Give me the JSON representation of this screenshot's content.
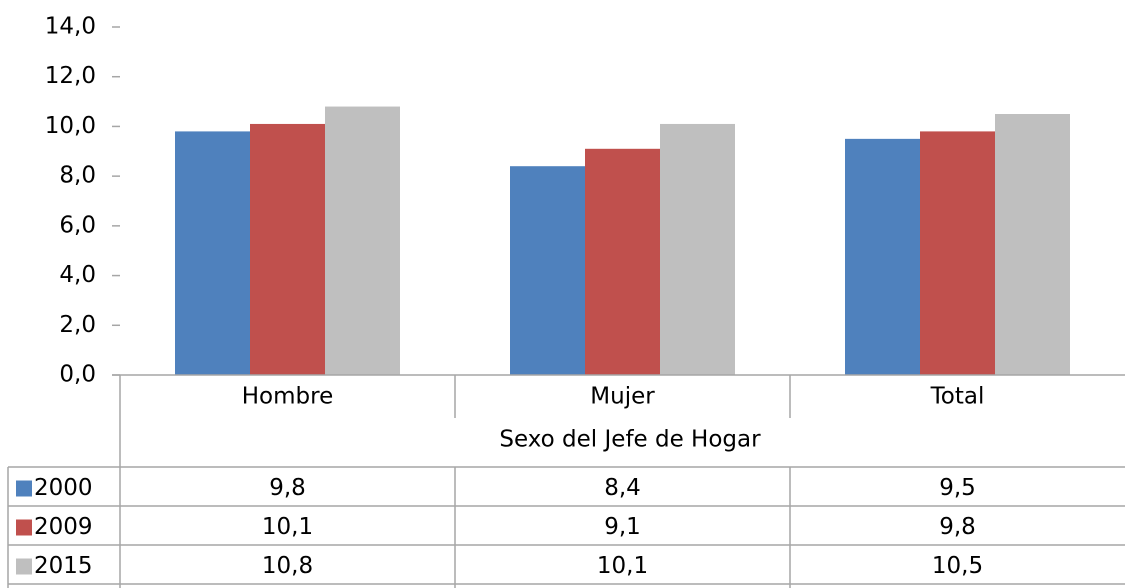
{
  "chart_data": {
    "type": "bar",
    "x_label": "Sexo del Jefe de Hogar",
    "categories": [
      "Hombre",
      "Mujer",
      "Total"
    ],
    "series": [
      {
        "name": "2000",
        "color": "#4f81bd",
        "values": [
          9.8,
          8.4,
          9.5
        ],
        "value_labels": [
          "9,8",
          "8,4",
          "9,5"
        ]
      },
      {
        "name": "2009",
        "color": "#c0504d",
        "values": [
          10.1,
          9.1,
          9.8
        ],
        "value_labels": [
          "10,1",
          "9,1",
          "9,8"
        ]
      },
      {
        "name": "2015",
        "color": "#bfbfbf",
        "values": [
          10.8,
          10.1,
          10.5
        ],
        "value_labels": [
          "10,8",
          "10,1",
          "10,5"
        ]
      }
    ],
    "ylim": [
      0,
      14
    ],
    "yticks": [
      {
        "value": 0,
        "label": "0,0"
      },
      {
        "value": 2,
        "label": "2,0"
      },
      {
        "value": 4,
        "label": "4,0"
      },
      {
        "value": 6,
        "label": "6,0"
      },
      {
        "value": 8,
        "label": "8,0"
      },
      {
        "value": 10,
        "label": "10,0"
      },
      {
        "value": 12,
        "label": "12,0"
      },
      {
        "value": 14,
        "label": "14,0"
      }
    ],
    "grid": false,
    "legend": "data-table"
  }
}
